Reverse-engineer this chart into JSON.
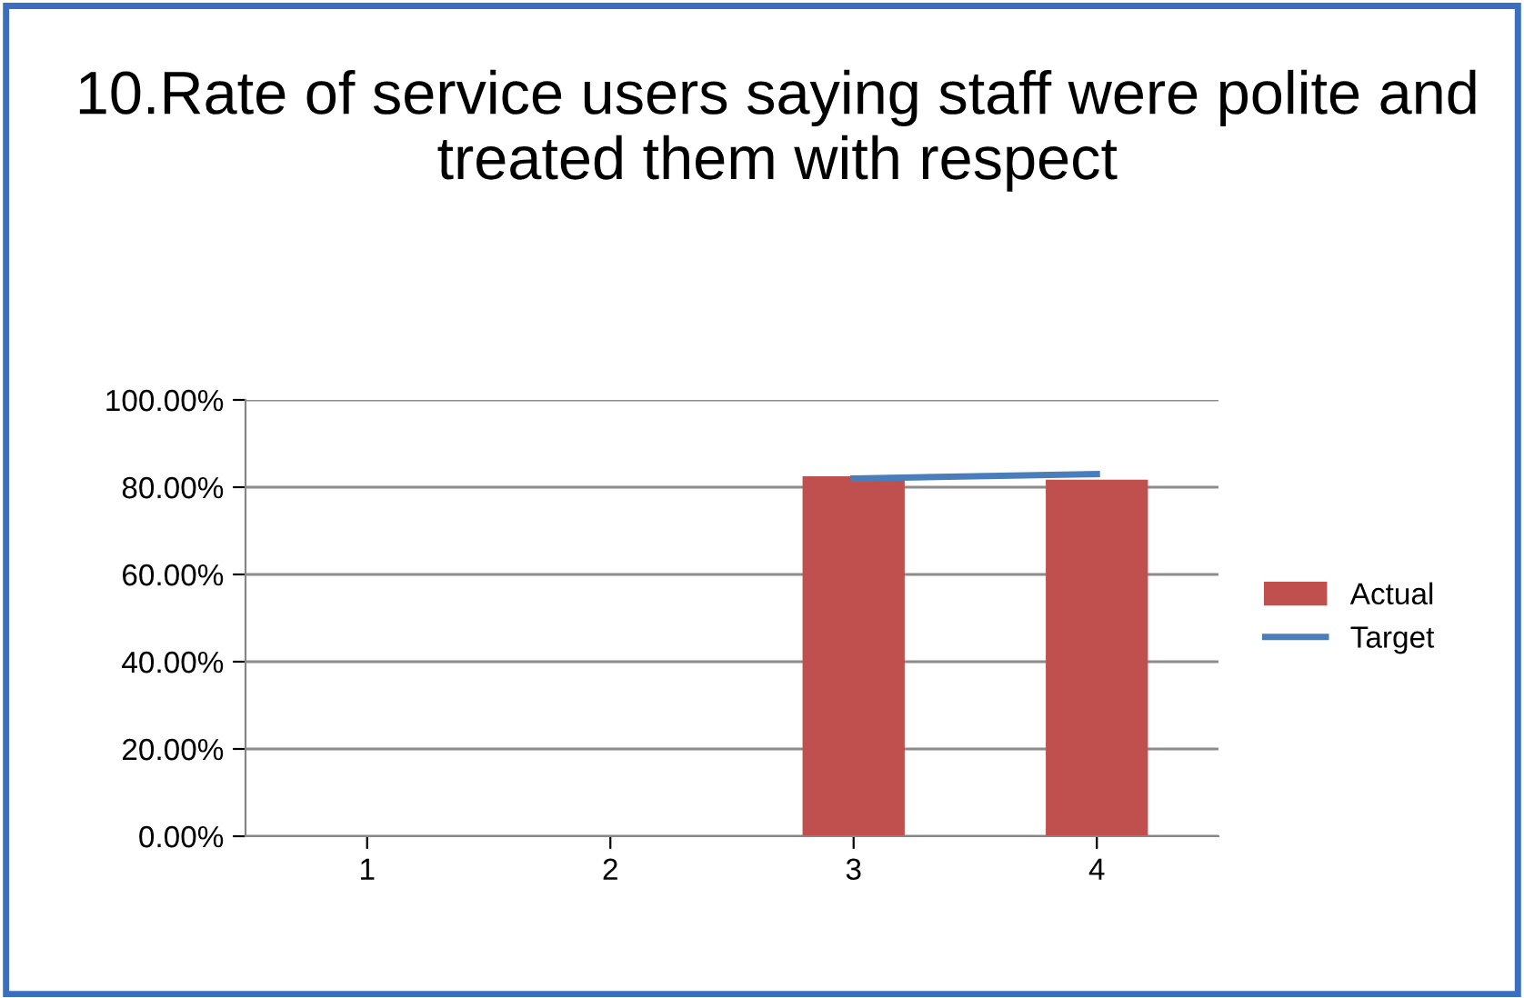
{
  "chart_data": {
    "type": "bar",
    "title": "10.Rate of service users saying staff were polite and treated them with respect",
    "categories": [
      "1",
      "2",
      "3",
      "4"
    ],
    "series": [
      {
        "name": "Actual",
        "color": "#c0504d",
        "values": [
          null,
          null,
          82.5,
          81.7
        ]
      },
      {
        "name": "Target",
        "type": "line",
        "color": "#4a7ebb",
        "values": [
          null,
          null,
          82,
          83
        ]
      }
    ],
    "ylim": [
      0,
      100
    ],
    "yticks": [
      {
        "value": 0,
        "label": "0.00%"
      },
      {
        "value": 20,
        "label": "20.00%"
      },
      {
        "value": 40,
        "label": "40.00%"
      },
      {
        "value": 60,
        "label": "60.00%"
      },
      {
        "value": 80,
        "label": "80.00%"
      },
      {
        "value": 100,
        "label": "100.00%"
      }
    ],
    "grid": "y",
    "legend": "right",
    "marker": "none"
  }
}
